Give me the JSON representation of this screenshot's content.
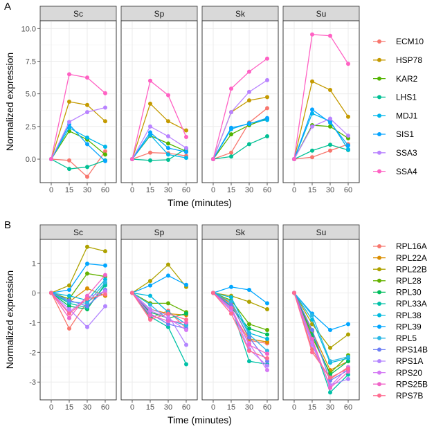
{
  "chart_data": [
    {
      "tag": "A",
      "type": "line",
      "xlabel": "Time (minutes)",
      "ylabel": "Normalized expression",
      "x": [
        0,
        15,
        30,
        60
      ],
      "x_tick_labels": [
        "0",
        "15",
        "30",
        "60"
      ],
      "y_ticks": [
        0,
        2.5,
        5,
        7.5,
        10
      ],
      "y_tick_labels": [
        "0.0",
        "2.5",
        "5.0",
        "7.5",
        "10.0"
      ],
      "ylim": [
        -1.8,
        10.6
      ],
      "facets": [
        "Sc",
        "Sp",
        "Sk",
        "Su"
      ],
      "legend_position": "right",
      "series": [
        {
          "name": "ECM10",
          "color": "#F8766D",
          "values": {
            "Sc": [
              0,
              -0.1,
              -1.35,
              0.6
            ],
            "Sp": [
              0,
              0.5,
              0.45,
              0.25
            ],
            "Sk": [
              0,
              0.5,
              2.8,
              3.9
            ],
            "Su": [
              0,
              0.15,
              0.65,
              1.15
            ]
          }
        },
        {
          "name": "HSP78",
          "color": "#C49A00",
          "values": {
            "Sc": [
              0,
              4.4,
              4.15,
              2.9
            ],
            "Sp": [
              0,
              4.25,
              2.9,
              2.2
            ],
            "Sk": [
              0,
              3.6,
              4.5,
              4.75
            ],
            "Su": [
              0,
              5.95,
              5.3,
              3.25
            ]
          }
        },
        {
          "name": "KAR2",
          "color": "#53B400",
          "values": {
            "Sc": [
              0,
              2.15,
              1.5,
              0.35
            ],
            "Sp": [
              0,
              1.8,
              1.2,
              0.6
            ],
            "Sk": [
              0,
              1.9,
              2.6,
              3.1
            ],
            "Su": [
              0,
              2.6,
              2.5,
              1.6
            ]
          }
        },
        {
          "name": "LHS1",
          "color": "#00C094",
          "values": {
            "Sc": [
              0,
              -0.75,
              -0.6,
              -0.1
            ],
            "Sp": [
              0,
              -0.1,
              -0.05,
              0.8
            ],
            "Sk": [
              0,
              0.2,
              1.15,
              1.75
            ],
            "Su": [
              0,
              0.65,
              1.1,
              0.7
            ]
          }
        },
        {
          "name": "MDJ1",
          "color": "#00B6EB",
          "values": {
            "Sc": [
              0,
              2.4,
              1.65,
              0.95
            ],
            "Sp": [
              0,
              1.85,
              0.35,
              0.1
            ],
            "Sk": [
              0,
              2.3,
              2.75,
              3.0
            ],
            "Su": [
              0,
              3.5,
              2.9,
              0.75
            ]
          }
        },
        {
          "name": "SIS1",
          "color": "#06A4FF",
          "values": {
            "Sc": [
              0,
              2.65,
              1.15,
              -0.15
            ],
            "Sp": [
              0,
              2.05,
              0.85,
              0.55
            ],
            "Sk": [
              0,
              2.4,
              2.7,
              3.15
            ],
            "Su": [
              0,
              3.8,
              2.8,
              1.05
            ]
          }
        },
        {
          "name": "SSA3",
          "color": "#B983FF",
          "values": {
            "Sc": [
              0,
              2.85,
              3.6,
              3.95
            ],
            "Sp": [
              0,
              2.5,
              1.75,
              0.85
            ],
            "Sk": [
              0,
              3.6,
              5.15,
              6.05
            ],
            "Su": [
              0,
              2.5,
              3.1,
              1.8
            ]
          }
        },
        {
          "name": "SSA4",
          "color": "#FF61C3",
          "values": {
            "Sc": [
              0,
              6.5,
              6.25,
              5.05
            ],
            "Sp": [
              0,
              6.0,
              4.9,
              1.7
            ],
            "Sk": [
              0,
              5.4,
              6.7,
              7.7
            ],
            "Su": [
              0,
              9.55,
              9.45,
              7.3
            ]
          }
        }
      ]
    },
    {
      "tag": "B",
      "type": "line",
      "xlabel": "Time (minutes)",
      "ylabel": "Normalized expression",
      "x": [
        0,
        15,
        30,
        60
      ],
      "x_tick_labels": [
        "0",
        "15",
        "30",
        "60"
      ],
      "y_ticks": [
        -3,
        -2,
        -1,
        0,
        1
      ],
      "y_tick_labels": [
        "-3",
        "-2",
        "-1",
        "0",
        "1"
      ],
      "ylim": [
        -3.6,
        1.8
      ],
      "facets": [
        "Sc",
        "Sp",
        "Sk",
        "Su"
      ],
      "legend_position": "right",
      "series": [
        {
          "name": "RPL16A",
          "color": "#F8766D",
          "values": {
            "Sc": [
              0,
              -1.2,
              -0.3,
              0.05
            ],
            "Sp": [
              0,
              -0.85,
              -0.6,
              -1.2
            ],
            "Sk": [
              0,
              -0.6,
              -1.6,
              -1.7
            ],
            "Su": [
              0,
              -1.9,
              -2.9,
              -2.5
            ]
          }
        },
        {
          "name": "RPL22A",
          "color": "#DB8E00",
          "values": {
            "Sc": [
              0,
              -0.3,
              0.15,
              -0.1
            ],
            "Sp": [
              0,
              -0.55,
              -0.7,
              -0.75
            ],
            "Sk": [
              0,
              -0.35,
              -1.55,
              -1.65
            ],
            "Su": [
              0,
              -1.3,
              -2.6,
              -2.3
            ]
          }
        },
        {
          "name": "RPL22B",
          "color": "#AEA200",
          "values": {
            "Sc": [
              0,
              0.25,
              1.55,
              1.4
            ],
            "Sp": [
              0,
              0.4,
              0.95,
              0.2
            ],
            "Sk": [
              0,
              -0.1,
              -0.3,
              -0.55
            ],
            "Su": [
              0,
              -1.05,
              -1.85,
              -1.4
            ]
          }
        },
        {
          "name": "RPL28",
          "color": "#64B200",
          "values": {
            "Sc": [
              0,
              -0.2,
              0.65,
              0.55
            ],
            "Sp": [
              0,
              -0.35,
              -0.35,
              -0.65
            ],
            "Sk": [
              0,
              -0.25,
              -1.05,
              -1.25
            ],
            "Su": [
              0,
              -1.5,
              -2.7,
              -2.1
            ]
          }
        },
        {
          "name": "RPL30",
          "color": "#00BD5C",
          "values": {
            "Sc": [
              0,
              -0.45,
              -0.55,
              0.3
            ],
            "Sp": [
              0,
              -0.65,
              -0.85,
              -0.7
            ],
            "Sk": [
              0,
              -0.5,
              -1.2,
              -1.4
            ],
            "Su": [
              0,
              -1.4,
              -2.75,
              -2.3
            ]
          }
        },
        {
          "name": "RPL33A",
          "color": "#00C1A7",
          "values": {
            "Sc": [
              0,
              -0.35,
              -0.5,
              0.25
            ],
            "Sp": [
              0,
              -0.8,
              -1.15,
              -2.4
            ],
            "Sk": [
              0,
              -0.45,
              -2.3,
              -2.4
            ],
            "Su": [
              0,
              -1.6,
              -3.35,
              -2.75
            ]
          }
        },
        {
          "name": "RPL38",
          "color": "#00BADE",
          "values": {
            "Sc": [
              0,
              -0.1,
              -0.25,
              0.45
            ],
            "Sp": [
              0,
              -0.1,
              -0.65,
              -1.05
            ],
            "Sk": [
              0,
              -0.15,
              -1.35,
              -1.55
            ],
            "Su": [
              0,
              -0.9,
              -2.35,
              -2.2
            ]
          }
        },
        {
          "name": "RPL39",
          "color": "#00A6FF",
          "values": {
            "Sc": [
              0,
              0.1,
              0.98,
              0.92
            ],
            "Sp": [
              0,
              0.25,
              0.58,
              0.27
            ],
            "Sk": [
              0,
              0.2,
              0.1,
              -0.35
            ],
            "Su": [
              0,
              -0.7,
              -1.25,
              -1.05
            ]
          }
        },
        {
          "name": "RPL5",
          "color": "#2BB8E6",
          "values": {
            "Sc": [
              0,
              -0.3,
              -0.35,
              0.35
            ],
            "Sp": [
              0,
              -0.4,
              -0.9,
              -1.1
            ],
            "Sk": [
              0,
              -0.3,
              -1.4,
              -1.95
            ],
            "Su": [
              0,
              -0.75,
              -2.3,
              -2.15
            ]
          }
        },
        {
          "name": "RPS14B",
          "color": "#6C7EF5",
          "values": {
            "Sc": [
              0,
              -0.25,
              -0.45,
              0.1
            ],
            "Sp": [
              0,
              -0.7,
              -1.05,
              -1.2
            ],
            "Sk": [
              0,
              -0.4,
              -1.5,
              -2.3
            ],
            "Su": [
              0,
              -1.25,
              -2.95,
              -2.6
            ]
          }
        },
        {
          "name": "RPS1A",
          "color": "#B385FF",
          "values": {
            "Sc": [
              0,
              -0.55,
              -1.15,
              -0.45
            ],
            "Sp": [
              0,
              -0.55,
              -0.75,
              -1.75
            ],
            "Sk": [
              0,
              -0.55,
              -1.9,
              -2.45
            ],
            "Su": [
              0,
              -1.75,
              -3.1,
              -2.9
            ]
          }
        },
        {
          "name": "RPS20",
          "color": "#D479F4",
          "values": {
            "Sc": [
              0,
              -0.65,
              -0.15,
              0.05
            ],
            "Sp": [
              0,
              -0.6,
              -0.85,
              -1.25
            ],
            "Sk": [
              0,
              -0.6,
              -1.7,
              -2.6
            ],
            "Su": [
              0,
              -1.65,
              -3.15,
              -2.5
            ]
          }
        },
        {
          "name": "RPS25B",
          "color": "#F064C8",
          "values": {
            "Sc": [
              0,
              -0.85,
              -0.1,
              0.6
            ],
            "Sp": [
              0,
              -0.75,
              -0.95,
              -1.0
            ],
            "Sk": [
              0,
              -0.5,
              -1.75,
              -2.05
            ],
            "Su": [
              0,
              -1.55,
              -3.2,
              -2.65
            ]
          }
        },
        {
          "name": "RPS7B",
          "color": "#FF6C91",
          "values": {
            "Sc": [
              0,
              -0.7,
              -0.2,
              -0.05
            ],
            "Sp": [
              0,
              -0.9,
              -0.7,
              -0.9
            ],
            "Sk": [
              0,
              -0.7,
              -1.95,
              -2.2
            ],
            "Su": [
              0,
              -2.0,
              -2.85,
              -2.55
            ]
          }
        }
      ]
    }
  ]
}
